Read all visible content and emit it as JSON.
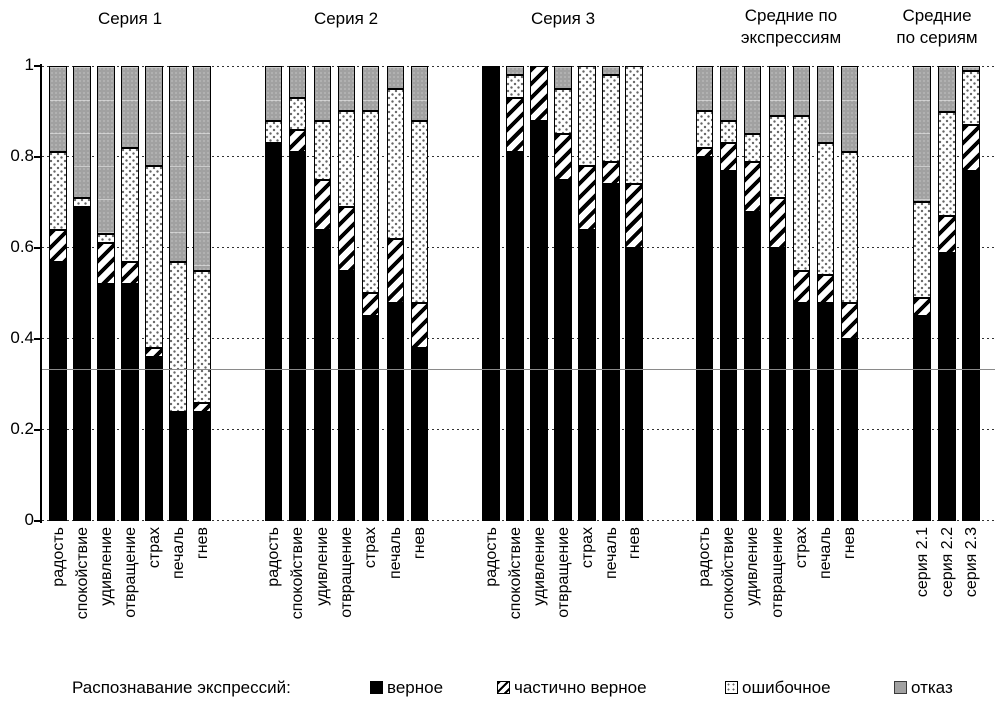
{
  "legend": {
    "title": "Распознавание экспрессий:",
    "items": [
      {
        "label": "верное",
        "style": "black"
      },
      {
        "label": "частично верное",
        "style": "hatch"
      },
      {
        "label": "ошибочное",
        "style": "dots"
      },
      {
        "label": "отказ",
        "style": "gray"
      }
    ]
  },
  "chart_data": {
    "type": "bar",
    "stacked": true,
    "ylim": [
      0,
      1
    ],
    "y_ticks": [
      "0",
      "0.2",
      "0.4",
      "0.6",
      "0.8",
      "1"
    ],
    "grid": "horizontal dotted lines every 0.2",
    "chance_line": 0.333,
    "legend_position": "bottom",
    "series_names": [
      "верное",
      "частично верное",
      "ошибочное",
      "отказ"
    ],
    "segment_styles": [
      "solid black",
      "diagonal hatch",
      "white with gray dots",
      "gray"
    ],
    "colors": {
      "верное": "#000000",
      "отказ": "#a1a1a1",
      "ошибочное": "#ffffff",
      "частично верное": "#000000 on #ffffff"
    },
    "panels": [
      {
        "title": "Серия 1",
        "title_lines": [
          "Серия 1"
        ],
        "categories": [
          "радость",
          "спокойствие",
          "удивление",
          "отвращение",
          "страх",
          "печаль",
          "гнев"
        ],
        "values": [
          [
            0.57,
            0.07,
            0.17,
            0.19
          ],
          [
            0.69,
            0.0,
            0.02,
            0.29
          ],
          [
            0.52,
            0.09,
            0.02,
            0.37
          ],
          [
            0.52,
            0.05,
            0.25,
            0.18
          ],
          [
            0.36,
            0.02,
            0.4,
            0.22
          ],
          [
            0.24,
            0.0,
            0.33,
            0.43
          ],
          [
            0.24,
            0.02,
            0.29,
            0.45
          ]
        ]
      },
      {
        "title": "Серия 2",
        "title_lines": [
          "Серия 2"
        ],
        "categories": [
          "радость",
          "спокойствие",
          "удивление",
          "отвращение",
          "страх",
          "печаль",
          "гнев"
        ],
        "values": [
          [
            0.83,
            0.0,
            0.05,
            0.12
          ],
          [
            0.81,
            0.05,
            0.07,
            0.07
          ],
          [
            0.64,
            0.11,
            0.13,
            0.12
          ],
          [
            0.55,
            0.14,
            0.21,
            0.1
          ],
          [
            0.45,
            0.05,
            0.4,
            0.1
          ],
          [
            0.48,
            0.14,
            0.33,
            0.05
          ],
          [
            0.38,
            0.1,
            0.4,
            0.12
          ]
        ]
      },
      {
        "title": "Серия 3",
        "title_lines": [
          "Серия 3"
        ],
        "categories": [
          "радость",
          "спокойствие",
          "удивление",
          "отвращение",
          "страх",
          "печаль",
          "гнев"
        ],
        "values": [
          [
            1.0,
            0.0,
            0.0,
            0.0
          ],
          [
            0.81,
            0.12,
            0.05,
            0.02
          ],
          [
            0.88,
            0.12,
            0.0,
            0.0
          ],
          [
            0.75,
            0.1,
            0.1,
            0.05
          ],
          [
            0.64,
            0.14,
            0.22,
            0.0
          ],
          [
            0.74,
            0.05,
            0.19,
            0.02
          ],
          [
            0.6,
            0.14,
            0.26,
            0.0
          ]
        ]
      },
      {
        "title": "Средние по экспрессиям",
        "title_lines": [
          "Средние по",
          "экспрессиям"
        ],
        "categories": [
          "радость",
          "спокойствие",
          "удивление",
          "отвращение",
          "страх",
          "печаль",
          "гнев"
        ],
        "values": [
          [
            0.8,
            0.02,
            0.08,
            0.1
          ],
          [
            0.77,
            0.06,
            0.05,
            0.12
          ],
          [
            0.68,
            0.11,
            0.06,
            0.15
          ],
          [
            0.6,
            0.11,
            0.18,
            0.11
          ],
          [
            0.48,
            0.07,
            0.34,
            0.11
          ],
          [
            0.48,
            0.06,
            0.29,
            0.17
          ],
          [
            0.4,
            0.08,
            0.33,
            0.19
          ]
        ]
      },
      {
        "title": "Средние по сериям",
        "title_lines": [
          "Средние",
          "по сериям"
        ],
        "categories": [
          "серия 2.1",
          "серия 2.2",
          "серия 2.3"
        ],
        "values": [
          [
            0.45,
            0.04,
            0.21,
            0.3
          ],
          [
            0.59,
            0.08,
            0.23,
            0.1
          ],
          [
            0.77,
            0.1,
            0.12,
            0.01
          ]
        ]
      }
    ]
  }
}
